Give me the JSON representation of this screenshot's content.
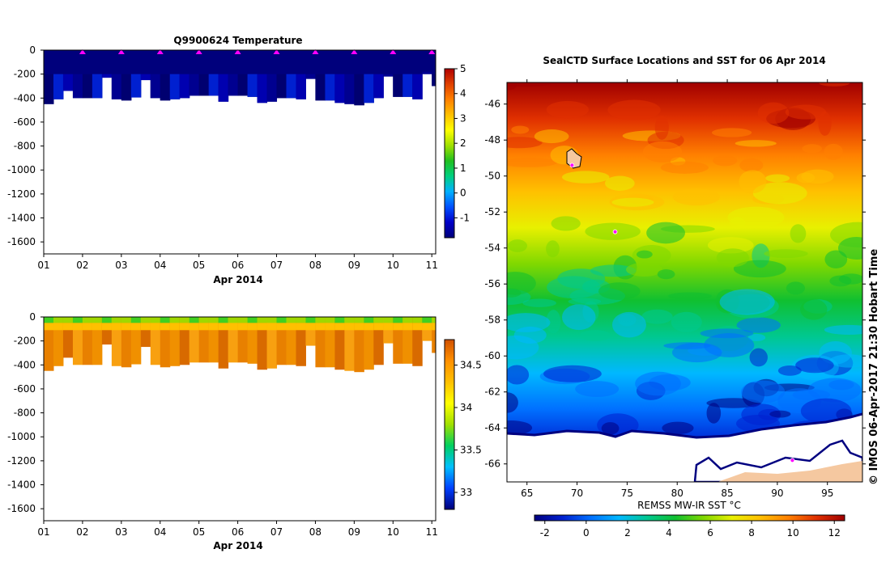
{
  "colors": {
    "temperature_scale": [
      "#00007a",
      "#0000c8",
      "#0050ff",
      "#00b0ff",
      "#00d080",
      "#20c020",
      "#a0e000",
      "#ffff00",
      "#ffc000",
      "#ff8000",
      "#e04000",
      "#b00000"
    ],
    "salinity_scale": [
      "#00007a",
      "#0040ff",
      "#00c0ff",
      "#00d060",
      "#a0e000",
      "#ffff00",
      "#ffc000",
      "#ff9000",
      "#d05000"
    ],
    "sst_scale": [
      "#000080",
      "#0020d0",
      "#0070ff",
      "#00b8ff",
      "#00c890",
      "#10c030",
      "#80d800",
      "#e8f000",
      "#ffc000",
      "#ff8000",
      "#e03000",
      "#a00000"
    ],
    "marker": "#ff00ff",
    "land": "#f5c8a0",
    "ice_edge": "#000080"
  },
  "chart_data": [
    {
      "type": "heatmap",
      "name": "temperature-section",
      "title": "Q9900624  Temperature",
      "xlabel": "Apr 2014",
      "ylabel": "",
      "x_ticks": [
        "01",
        "02",
        "03",
        "04",
        "05",
        "06",
        "07",
        "08",
        "09",
        "10",
        "11"
      ],
      "xlim": [
        1,
        11.1
      ],
      "y_ticks": [
        0,
        -200,
        -400,
        -600,
        -800,
        -1000,
        -1200,
        -1400,
        -1600
      ],
      "ylim": [
        -1700,
        0
      ],
      "profile_days": [
        1.0,
        1.25,
        1.5,
        1.75,
        2.0,
        2.25,
        2.5,
        2.75,
        3.0,
        3.25,
        3.5,
        3.75,
        4.0,
        4.25,
        4.5,
        4.75,
        5.0,
        5.25,
        5.5,
        5.75,
        6.0,
        6.25,
        6.5,
        6.75,
        7.0,
        7.25,
        7.5,
        7.75,
        8.0,
        8.25,
        8.5,
        8.75,
        9.0,
        9.25,
        9.5,
        9.75,
        10.0,
        10.25,
        10.5,
        10.75,
        11.0
      ],
      "profile_max_depth": [
        450,
        410,
        340,
        400,
        400,
        400,
        230,
        410,
        420,
        395,
        250,
        400,
        420,
        410,
        400,
        380,
        380,
        380,
        430,
        380,
        380,
        390,
        440,
        430,
        400,
        400,
        410,
        240,
        420,
        420,
        440,
        450,
        460,
        440,
        400,
        220,
        390,
        390,
        410,
        200,
        300
      ],
      "surface_markers": [
        2,
        3,
        4,
        5,
        6,
        7,
        8,
        9,
        10,
        11
      ],
      "colorbar": {
        "ticks": [
          "5",
          "4",
          "3",
          "2",
          "1",
          "0",
          "-1"
        ],
        "range": [
          -1.8,
          5
        ]
      }
    },
    {
      "type": "heatmap",
      "name": "salinity-section",
      "title": "",
      "xlabel": "Apr 2014",
      "ylabel": "",
      "x_ticks": [
        "01",
        "02",
        "03",
        "04",
        "05",
        "06",
        "07",
        "08",
        "09",
        "10",
        "11"
      ],
      "xlim": [
        1,
        11.1
      ],
      "y_ticks": [
        0,
        -200,
        -400,
        -600,
        -800,
        -1000,
        -1200,
        -1400,
        -1600
      ],
      "ylim": [
        -1700,
        0
      ],
      "colorbar": {
        "ticks": [
          "34.5",
          "34",
          "33.5",
          "33"
        ],
        "range": [
          32.8,
          34.8
        ]
      }
    },
    {
      "type": "heatmap",
      "name": "sst-map",
      "title": "SealCTD Surface Locations and SST for 06 Apr 2014",
      "x_ticks": [
        "65",
        "70",
        "75",
        "80",
        "85",
        "90",
        "95"
      ],
      "xlim": [
        63,
        98.5
      ],
      "y_ticks": [
        "-46",
        "-48",
        "-50",
        "-52",
        "-54",
        "-56",
        "-58",
        "-60",
        "-62",
        "-64",
        "-66"
      ],
      "ylim": [
        -67,
        -44.8
      ],
      "colorbar_label": "REMSS MW-IR SST °C",
      "colorbar_ticks": [
        "-2",
        "0",
        "2",
        "4",
        "6",
        "8",
        "10",
        "12"
      ],
      "colorbar_range": [
        -2.5,
        12.5
      ],
      "seal_locations": [
        {
          "lon": 69.5,
          "lat": -49.4
        },
        {
          "lon": 73.8,
          "lat": -53.1
        },
        {
          "lon": 91.5,
          "lat": -65.8
        }
      ],
      "credit": "© IMOS 06-Apr-2017 21:30 Hobart Time"
    }
  ]
}
